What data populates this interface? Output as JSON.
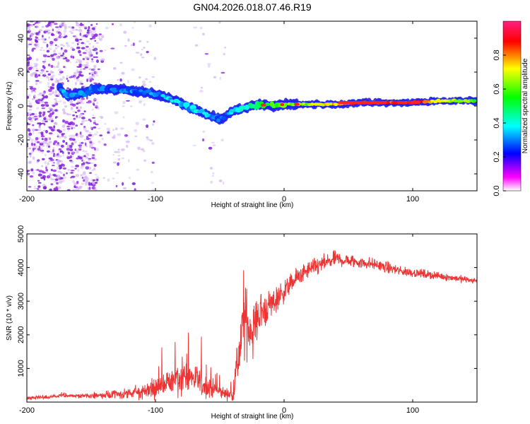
{
  "title": "GN04.2026.018.07.46.R19",
  "chart_data": [
    {
      "type": "heatmap",
      "title": "",
      "xlabel": "Height of straight line (km)",
      "ylabel": "Frequency (Hz)",
      "xlim": [
        -200,
        150
      ],
      "ylim": [
        -50,
        50
      ],
      "xticks": [
        -200,
        -100,
        0,
        100
      ],
      "yticks": [
        -40,
        -20,
        0,
        20,
        40
      ],
      "colorbar": {
        "label": "Normalized spectral amplitude",
        "ticks": [
          "0.0",
          "0.2",
          "0.4",
          "0.6",
          "0.8"
        ],
        "range": [
          0,
          1
        ],
        "colors": [
          "#ffffff",
          "#ff00ff",
          "#0000ff",
          "#00ffff",
          "#00ff00",
          "#ffff00",
          "#ff0000",
          "#ff2080"
        ]
      },
      "ridge": {
        "x": [
          -175,
          -172,
          -168,
          -145,
          -130,
          -120,
          -110,
          -100,
          -90,
          -80,
          -70,
          -60,
          -50,
          -45,
          -40,
          -30,
          -20,
          -10,
          0,
          20,
          40,
          60,
          80,
          100,
          120,
          150
        ],
        "y": [
          12,
          8,
          6,
          10,
          10,
          9,
          8,
          7,
          5,
          2,
          -2,
          -5,
          -8,
          -6,
          -3,
          -1,
          1,
          0,
          1,
          1,
          1,
          2,
          2,
          2,
          3,
          3
        ],
        "amplitude": [
          0.3,
          0.4,
          0.3,
          0.25,
          0.3,
          0.3,
          0.3,
          0.3,
          0.35,
          0.35,
          0.35,
          0.35,
          0.3,
          0.3,
          0.4,
          0.4,
          0.5,
          0.55,
          0.6,
          0.65,
          0.75,
          0.9,
          0.85,
          0.9,
          0.7,
          0.6
        ]
      }
    },
    {
      "type": "line",
      "title": "",
      "xlabel": "Height of straight line (km)",
      "ylabel": "SNR (10 * v/v)",
      "xlim": [
        -200,
        150
      ],
      "ylim": [
        0,
        5000
      ],
      "xticks": [
        -200,
        -100,
        0,
        100
      ],
      "yticks": [
        1000,
        2000,
        3000,
        4000,
        5000
      ],
      "color": "#ee3333",
      "envelope": {
        "x": [
          -200,
          -180,
          -170,
          -160,
          -140,
          -120,
          -100,
          -90,
          -80,
          -70,
          -60,
          -50,
          -45,
          -40,
          -35,
          -30,
          -25,
          -20,
          -10,
          0,
          10,
          20,
          30,
          40,
          50,
          60,
          70,
          80,
          90,
          100,
          110,
          120,
          130,
          140,
          150
        ],
        "mean": [
          120,
          150,
          200,
          180,
          200,
          250,
          400,
          600,
          800,
          700,
          450,
          300,
          250,
          200,
          1500,
          2500,
          2000,
          2600,
          2900,
          3300,
          3700,
          3950,
          4100,
          4250,
          4200,
          4150,
          4100,
          4000,
          3900,
          3850,
          3800,
          3750,
          3700,
          3650,
          3600
        ],
        "spread": [
          60,
          80,
          100,
          80,
          120,
          200,
          350,
          500,
          700,
          600,
          400,
          250,
          200,
          200,
          1200,
          1200,
          900,
          800,
          550,
          400,
          350,
          300,
          300,
          280,
          250,
          220,
          200,
          200,
          180,
          160,
          150,
          140,
          130,
          120,
          120
        ]
      }
    }
  ]
}
